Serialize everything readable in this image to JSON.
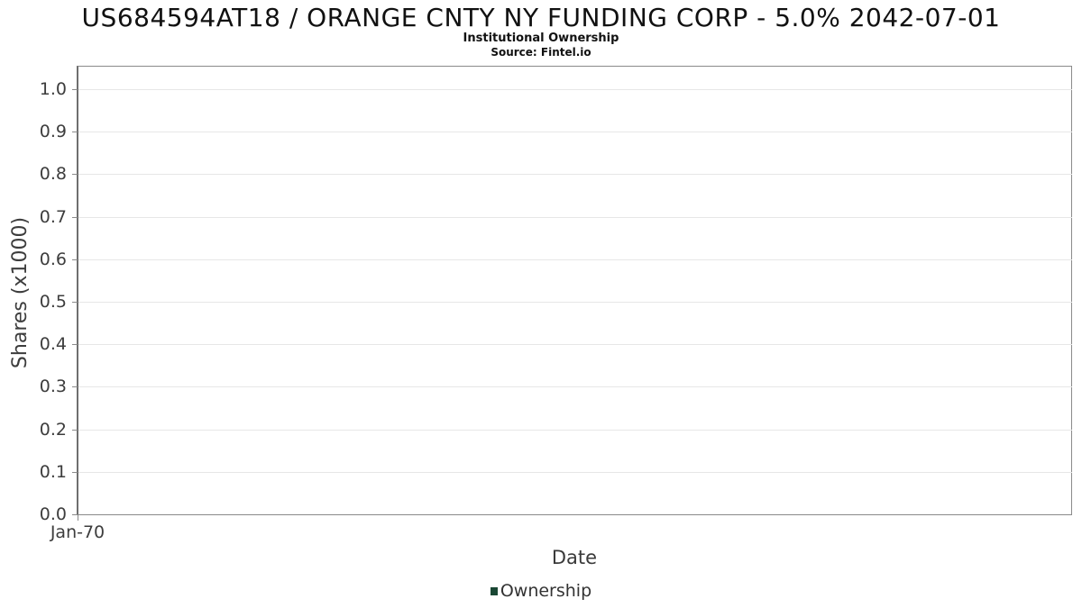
{
  "chart_data": {
    "type": "line",
    "title": "US684594AT18 / ORANGE CNTY NY FUNDING CORP - 5.0% 2042-07-01",
    "subtitle": "Institutional Ownership",
    "source": "Source: Fintel.io",
    "xlabel": "Date",
    "ylabel": "Shares (x1000)",
    "x_ticks": [
      "Jan-70"
    ],
    "y_ticks": [
      "0.0",
      "0.1",
      "0.2",
      "0.3",
      "0.4",
      "0.5",
      "0.6",
      "0.7",
      "0.8",
      "0.9",
      "1.0"
    ],
    "ylim": [
      0.0,
      1.05
    ],
    "grid": "horizontal",
    "legend_position": "bottom-center",
    "series": [
      {
        "name": "Ownership",
        "color": "#1a4734",
        "x": [],
        "values": []
      }
    ],
    "colors": {
      "legend_swatch": "#1a4734",
      "gridline": "#e7e7e7",
      "axis_border": "#8a8a8a",
      "tick_text": "#3d3d3d"
    }
  }
}
